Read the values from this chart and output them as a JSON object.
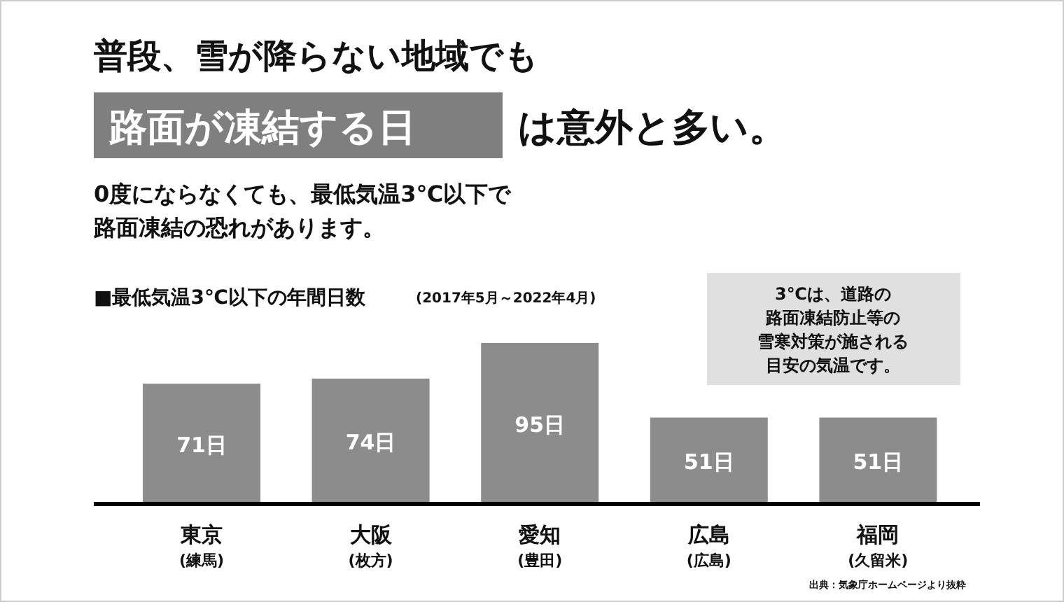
{
  "chart_data": {
    "type": "bar",
    "title": "普段、雪が降らない地域でも",
    "subtitle": "■最低気温3℃以下の年間日数",
    "categories": [
      "東京\n(練馬)",
      "大阪\n(枚方)",
      "愛知\n(豊田)",
      "広島\n(広島)",
      "福岡\n(久留米)"
    ],
    "values": [
      71,
      74,
      95,
      51,
      51
    ],
    "value_labels": [
      "71日",
      "74日",
      "95日",
      "51日",
      "51日"
    ],
    "color": "#8c8c8c",
    "annotations": [
      "路面が凍結する日",
      "は意外と多い。",
      "0度にならなくても、最低気温3℃以下で",
      "路面凍結の恐れがあります。",
      "(2017年5月～2022年4月)",
      "3℃は、道路の",
      "路面凍結防止等の",
      "雪寒対策が施される",
      "目安の気温です。",
      "出典：気象庁ホームページより抜粋"
    ]
  }
}
